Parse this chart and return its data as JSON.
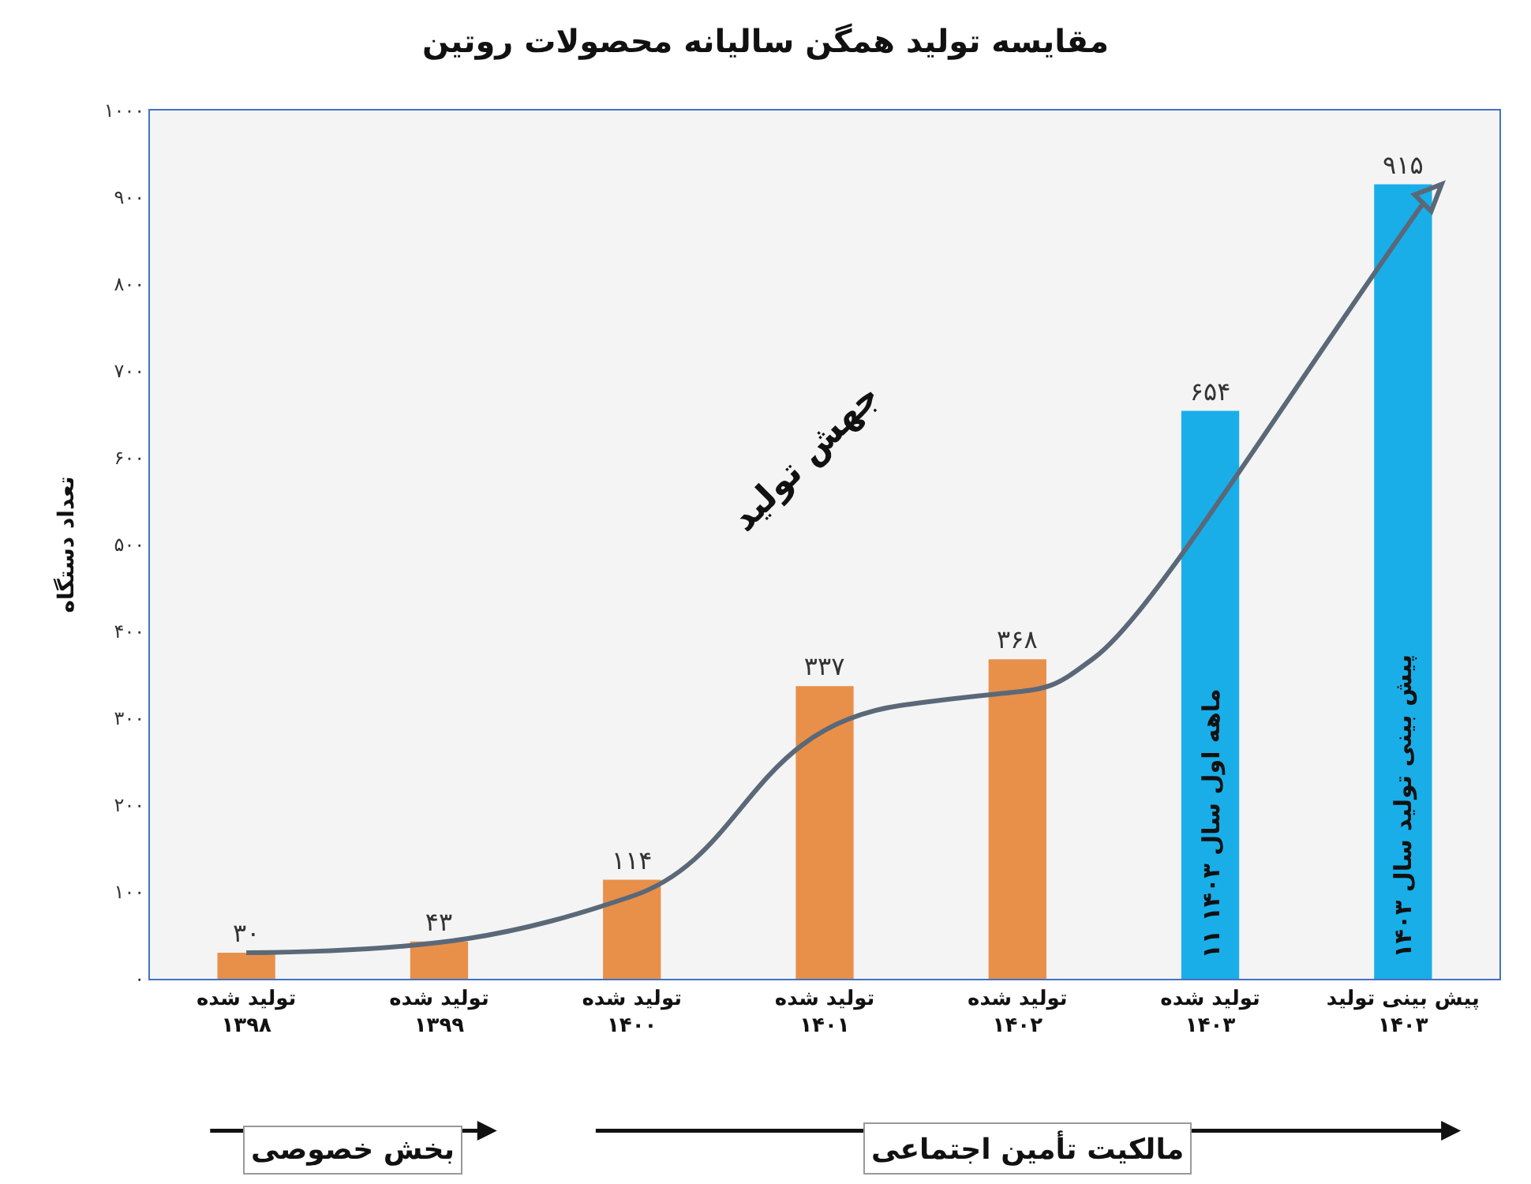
{
  "chart_data": {
    "type": "bar",
    "title": "مقایسه تولید همگن سالیانه محصولات روتین",
    "ylabel": "تعداد دستگاه",
    "categories": [
      "تولید شده\n۱۳۹۸",
      "تولید شده\n۱۳۹۹",
      "تولید شده\n۱۴۰۰",
      "تولید شده\n۱۴۰۱",
      "تولید شده\n۱۴۰۲",
      "تولید شده\n۱۴۰۳",
      "پیش بینی تولید\n۱۴۰۳"
    ],
    "series": [
      {
        "colors": [
          "#e8904a",
          "#e8904a",
          "#e8904a",
          "#e8904a",
          "#e8904a",
          "#1aaee8",
          "#1aaee8"
        ],
        "values": [
          30,
          43,
          114,
          337,
          368,
          654,
          915
        ],
        "value_labels": [
          "۳۰",
          "۴۳",
          "۱۱۴",
          "۳۳۷",
          "۳۶۸",
          "۶۵۴",
          "۹۱۵"
        ]
      }
    ],
    "ylim": [
      0,
      1000
    ],
    "yticks": [
      {
        "value": 0,
        "label": "۰"
      },
      {
        "value": 100,
        "label": "۱۰۰"
      },
      {
        "value": 200,
        "label": "۲۰۰"
      },
      {
        "value": 300,
        "label": "۳۰۰"
      },
      {
        "value": 400,
        "label": "۴۰۰"
      },
      {
        "value": 500,
        "label": "۵۰۰"
      },
      {
        "value": 600,
        "label": "۶۰۰"
      },
      {
        "value": 700,
        "label": "۷۰۰"
      },
      {
        "value": 800,
        "label": "۸۰۰"
      },
      {
        "value": 900,
        "label": "۹۰۰"
      },
      {
        "value": 1000,
        "label": "۱۰۰۰"
      }
    ],
    "annotations": [
      "۱۱ ماهه اول سال ۱۴۰۳",
      "پیش بینی تولید سال ۱۴۰۳",
      "جهش تولید",
      "بخش خصوصی",
      "مالکیت تأمین اجتماعی"
    ]
  }
}
